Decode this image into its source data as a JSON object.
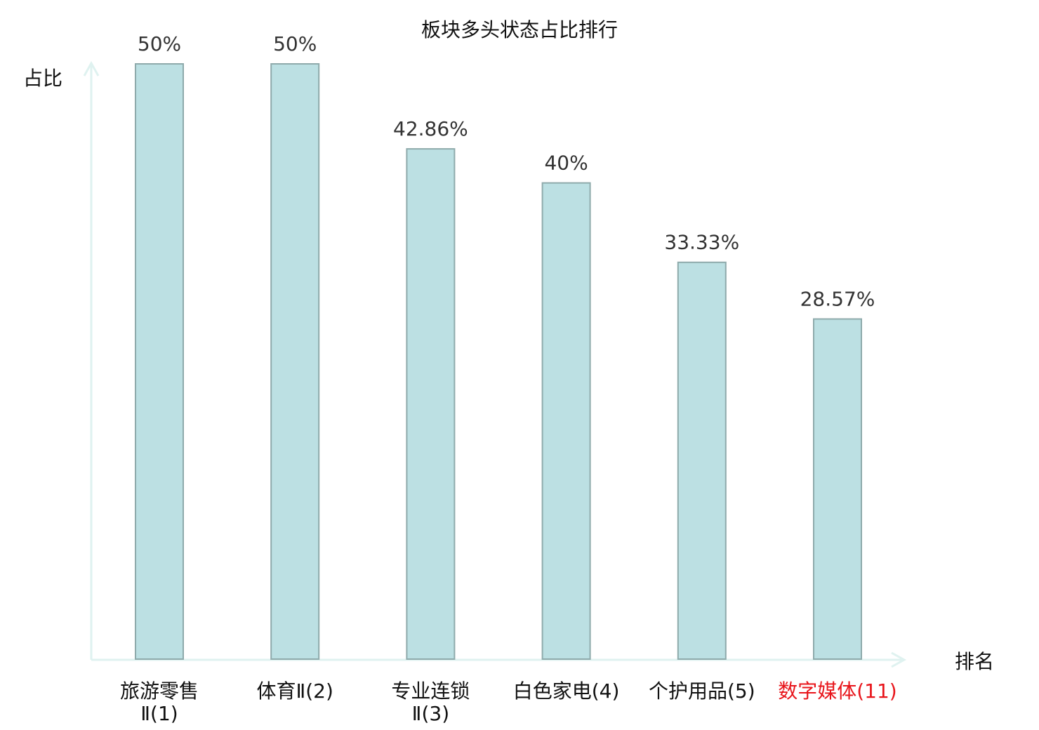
{
  "chart_data": {
    "type": "bar",
    "title": "板块多头状态占比排行",
    "ylabel": "占比",
    "xlabel": "排名",
    "ylim": [
      0,
      50
    ],
    "grid": false,
    "categories": [
      {
        "lines": [
          "旅游零售",
          "Ⅱ(1)"
        ],
        "highlight": false
      },
      {
        "lines": [
          "体育Ⅱ(2)"
        ],
        "highlight": false
      },
      {
        "lines": [
          "专业连锁",
          "Ⅱ(3)"
        ],
        "highlight": false
      },
      {
        "lines": [
          "白色家电(4)"
        ],
        "highlight": false
      },
      {
        "lines": [
          "个护用品(5)"
        ],
        "highlight": false
      },
      {
        "lines": [
          "数字媒体(11)"
        ],
        "highlight": true
      }
    ],
    "values": [
      50,
      50,
      42.86,
      40,
      33.33,
      28.57
    ],
    "value_labels": [
      "50%",
      "50%",
      "42.86%",
      "40%",
      "33.33%",
      "28.57%"
    ],
    "colors": {
      "bar_fill": "#bce0e3",
      "bar_stroke": "#8eaaab",
      "axis": "#dff2f0",
      "highlight": "#e8141a",
      "label": "#111111"
    }
  }
}
